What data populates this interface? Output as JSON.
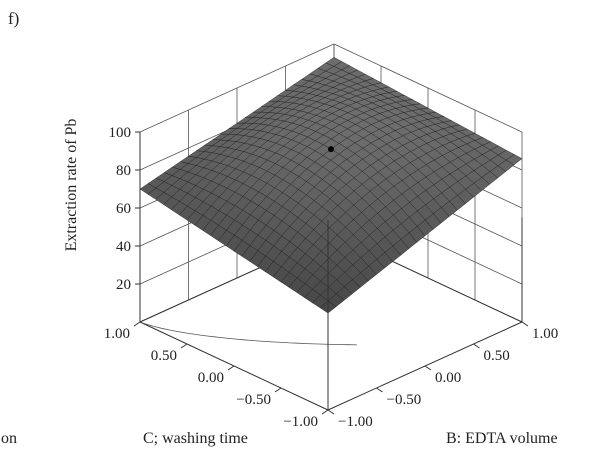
{
  "panel_label": "f)",
  "stray_text": "on",
  "chart_data": {
    "type": "surface3d",
    "title": "",
    "zlabel": "Extraction rate of Pb",
    "xlabel": "B: EDTA volume",
    "ylabel": "C; washing time",
    "xlim": [
      -1.0,
      1.0
    ],
    "ylim": [
      -1.0,
      1.0
    ],
    "zlim": [
      0,
      100
    ],
    "z_ticks": [
      "20",
      "40",
      "60",
      "80",
      "100"
    ],
    "x_ticks": [
      "−1.00",
      "−0.50",
      "0.00",
      "0.50",
      "1.00"
    ],
    "y_ticks": [
      "−1.00",
      "−0.50",
      "0.00",
      "0.50",
      "1.00"
    ],
    "grid": true,
    "surface_color": "#3a3a3a",
    "corner_values": {
      "b_-1_c_-1": 51,
      "b_1_c_-1": 86,
      "b_-1_c_1": 70,
      "b_1_c_1": 93
    },
    "center_value": 91,
    "design_point": {
      "b": 0.0,
      "c": 0.0,
      "z": 91
    },
    "contour_floor": true
  }
}
